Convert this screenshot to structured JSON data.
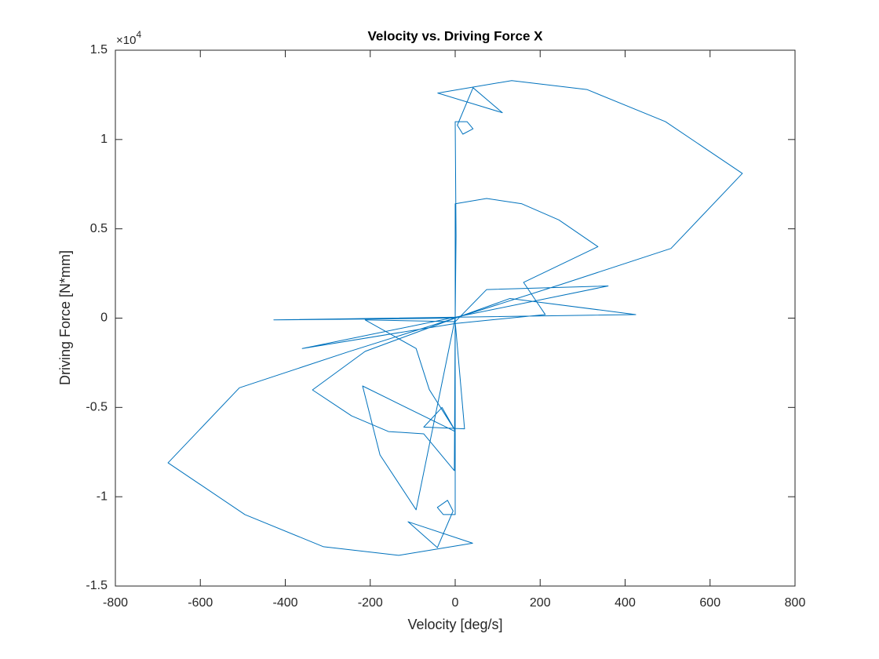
{
  "chart_data": {
    "type": "line",
    "title": "Velocity vs. Driving Force X",
    "x_label": "Velocity [deg/s]",
    "y_label": "Driving Force [N*mm]",
    "y_multiplier": {
      "base": "×10",
      "exponent": "4"
    },
    "xlim": [
      -800,
      800
    ],
    "ylim": [
      -15000,
      15000
    ],
    "xticks": [
      -800,
      -600,
      -400,
      -200,
      0,
      200,
      400,
      600,
      800
    ],
    "yticks": [
      {
        "value": -15000,
        "label": "-1.5"
      },
      {
        "value": -10000,
        "label": "-1"
      },
      {
        "value": -5000,
        "label": "-0.5"
      },
      {
        "value": 0,
        "label": "0"
      },
      {
        "value": 5000,
        "label": "0.5"
      },
      {
        "value": 10000,
        "label": "1"
      },
      {
        "value": 15000,
        "label": "1.5"
      }
    ],
    "grid": false,
    "series": [
      {
        "color": "#0072bd",
        "x": [
          0,
          2,
          0,
          28,
          42,
          18,
          5,
          42,
          111,
          -41,
          133,
          310,
          495,
          676,
          508,
          251,
          0,
          -427,
          425,
          129,
          0,
          0,
          74,
          157,
          244,
          336,
          161,
          212,
          0,
          -360,
          360,
          74,
          0,
          -212,
          -92,
          -61,
          0,
          -31,
          -74,
          22,
          0,
          0,
          -28,
          -42,
          -18,
          -5,
          -42,
          -111,
          41,
          -133,
          -310,
          -495,
          -676,
          -508,
          -251,
          0,
          -2,
          -74,
          -157,
          -244,
          -336,
          -212,
          0,
          0,
          -218,
          -177,
          -92,
          0
        ],
        "values": [
          0,
          4600,
          11000,
          11000,
          10600,
          10300,
          10800,
          12900,
          11500,
          12600,
          13300,
          12800,
          11000,
          8100,
          3900,
          1900,
          0,
          -100,
          200,
          1100,
          0,
          6400,
          6700,
          6400,
          5500,
          4000,
          2000,
          200,
          -300,
          -1700,
          1800,
          1600,
          -200,
          -100,
          -1700,
          -4000,
          -6300,
          -5000,
          -6100,
          -6200,
          -200,
          -11000,
          -11000,
          -10600,
          -10200,
          -10800,
          -12850,
          -11400,
          -12600,
          -13280,
          -12800,
          -11000,
          -8100,
          -3900,
          -1880,
          0,
          -8540,
          -6480,
          -6350,
          -5470,
          -4020,
          -1860,
          0,
          -6350,
          -3800,
          -7660,
          -10730,
          0
        ]
      }
    ]
  }
}
